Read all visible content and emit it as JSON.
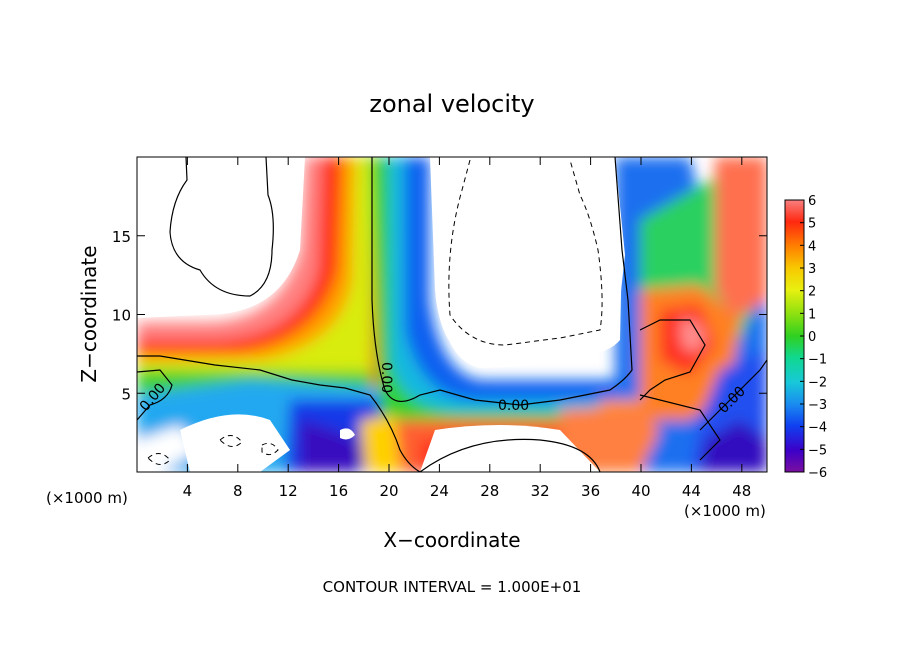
{
  "chart_data": {
    "type": "heatmap",
    "title": "zonal velocity",
    "xlabel": "X−coordinate",
    "ylabel": "Z−coordinate",
    "x_scale_note_left": "(×1000 m)",
    "x_scale_note_right": "(×1000 m)",
    "footer": "CONTOUR INTERVAL = 1.000E+01",
    "xlim": [
      0,
      50
    ],
    "ylim": [
      0,
      20
    ],
    "x_ticks": [
      4,
      8,
      12,
      16,
      20,
      24,
      28,
      32,
      36,
      40,
      44,
      48
    ],
    "y_ticks": [
      5,
      10,
      15
    ],
    "colorbar": {
      "ticks": [
        "6",
        "5",
        "4",
        "3",
        "2",
        "1",
        "0",
        "−1",
        "−2",
        "−3",
        "−4",
        "−5",
        "−6"
      ],
      "min": -6,
      "max": 6,
      "colors": [
        "#7a0fa0",
        "#3c00c8",
        "#1040f0",
        "#1a8cf0",
        "#18c8d8",
        "#10d890",
        "#30d020",
        "#8ce010",
        "#e8f010",
        "#f8c800",
        "#ff8000",
        "#ff2810",
        "#f86e6e"
      ]
    },
    "contour_labels": [
      "0.00",
      "0.00",
      "0.00",
      "0.00"
    ]
  }
}
